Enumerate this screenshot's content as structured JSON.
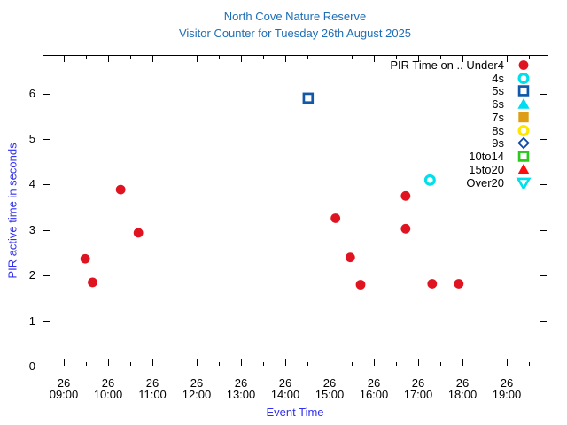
{
  "title": {
    "line1": "North Cove Nature Reserve",
    "line2": "Visitor Counter for Tuesday 26th August 2025",
    "color": "#1e6eb5"
  },
  "axes": {
    "x_label": "Event Time",
    "y_label": "PIR active time in seconds",
    "label_color": "#3030ee",
    "tick_color": "#000000"
  },
  "chart_data": {
    "type": "scatter",
    "title": "North Cove Nature Reserve - Visitor Counter for Tuesday 26th August 2025",
    "xlabel": "Event Time",
    "ylabel": "PIR active time in seconds",
    "grid": false,
    "legend_position": "top-right-inside",
    "x_axis": {
      "date_line": "26",
      "xlim_hours": [
        8.52,
        19.92
      ],
      "minor_tick_minutes": 30,
      "ticks": [
        {
          "date": "26",
          "time": "09:00"
        },
        {
          "date": "26",
          "time": "10:00"
        },
        {
          "date": "26",
          "time": "11:00"
        },
        {
          "date": "26",
          "time": "12:00"
        },
        {
          "date": "26",
          "time": "13:00"
        },
        {
          "date": "26",
          "time": "14:00"
        },
        {
          "date": "26",
          "time": "15:00"
        },
        {
          "date": "26",
          "time": "16:00"
        },
        {
          "date": "26",
          "time": "17:00"
        },
        {
          "date": "26",
          "time": "18:00"
        },
        {
          "date": "26",
          "time": "19:00"
        }
      ]
    },
    "ylim": [
      0,
      6.85
    ],
    "y_ticks": [
      "0",
      "1",
      "2",
      "3",
      "4",
      "5",
      "6"
    ],
    "series": [
      {
        "name": "PIR Time on .. Under4",
        "marker": "filled-circle",
        "color": "#e01420",
        "points": [
          {
            "time": "09:29",
            "seconds": 2.37
          },
          {
            "time": "09:39",
            "seconds": 1.85
          },
          {
            "time": "10:17",
            "seconds": 3.89
          },
          {
            "time": "10:41",
            "seconds": 2.94
          },
          {
            "time": "15:08",
            "seconds": 3.26
          },
          {
            "time": "15:28",
            "seconds": 2.4
          },
          {
            "time": "15:42",
            "seconds": 1.8
          },
          {
            "time": "16:43",
            "seconds": 3.75
          },
          {
            "time": "16:43",
            "seconds": 3.03
          },
          {
            "time": "17:19",
            "seconds": 1.82
          },
          {
            "time": "17:55",
            "seconds": 1.82
          }
        ]
      },
      {
        "name": "4s",
        "marker": "open-circle",
        "color": "#00e0ea",
        "points": [
          {
            "time": "17:16",
            "seconds": 4.1
          }
        ]
      },
      {
        "name": "5s",
        "marker": "open-square",
        "color": "#1159a8",
        "points": [
          {
            "time": "14:31",
            "seconds": 5.9
          }
        ]
      },
      {
        "name": "6s",
        "marker": "filled-triangle-up",
        "color": "#00dcf0",
        "points": []
      },
      {
        "name": "7s",
        "marker": "filled-square",
        "color": "#dd9d15",
        "points": []
      },
      {
        "name": "8s",
        "marker": "open-circle",
        "color": "#ffe600",
        "points": []
      },
      {
        "name": "9s",
        "marker": "open-diamond",
        "color": "#1148a8",
        "points": []
      },
      {
        "name": "10to14",
        "marker": "open-square",
        "color": "#2bc81e",
        "points": []
      },
      {
        "name": "15to20",
        "marker": "filled-triangle-up",
        "color": "#ff0d0d",
        "points": []
      },
      {
        "name": "Over20",
        "marker": "open-triangle-down",
        "color": "#00e0ea",
        "points": []
      }
    ]
  }
}
